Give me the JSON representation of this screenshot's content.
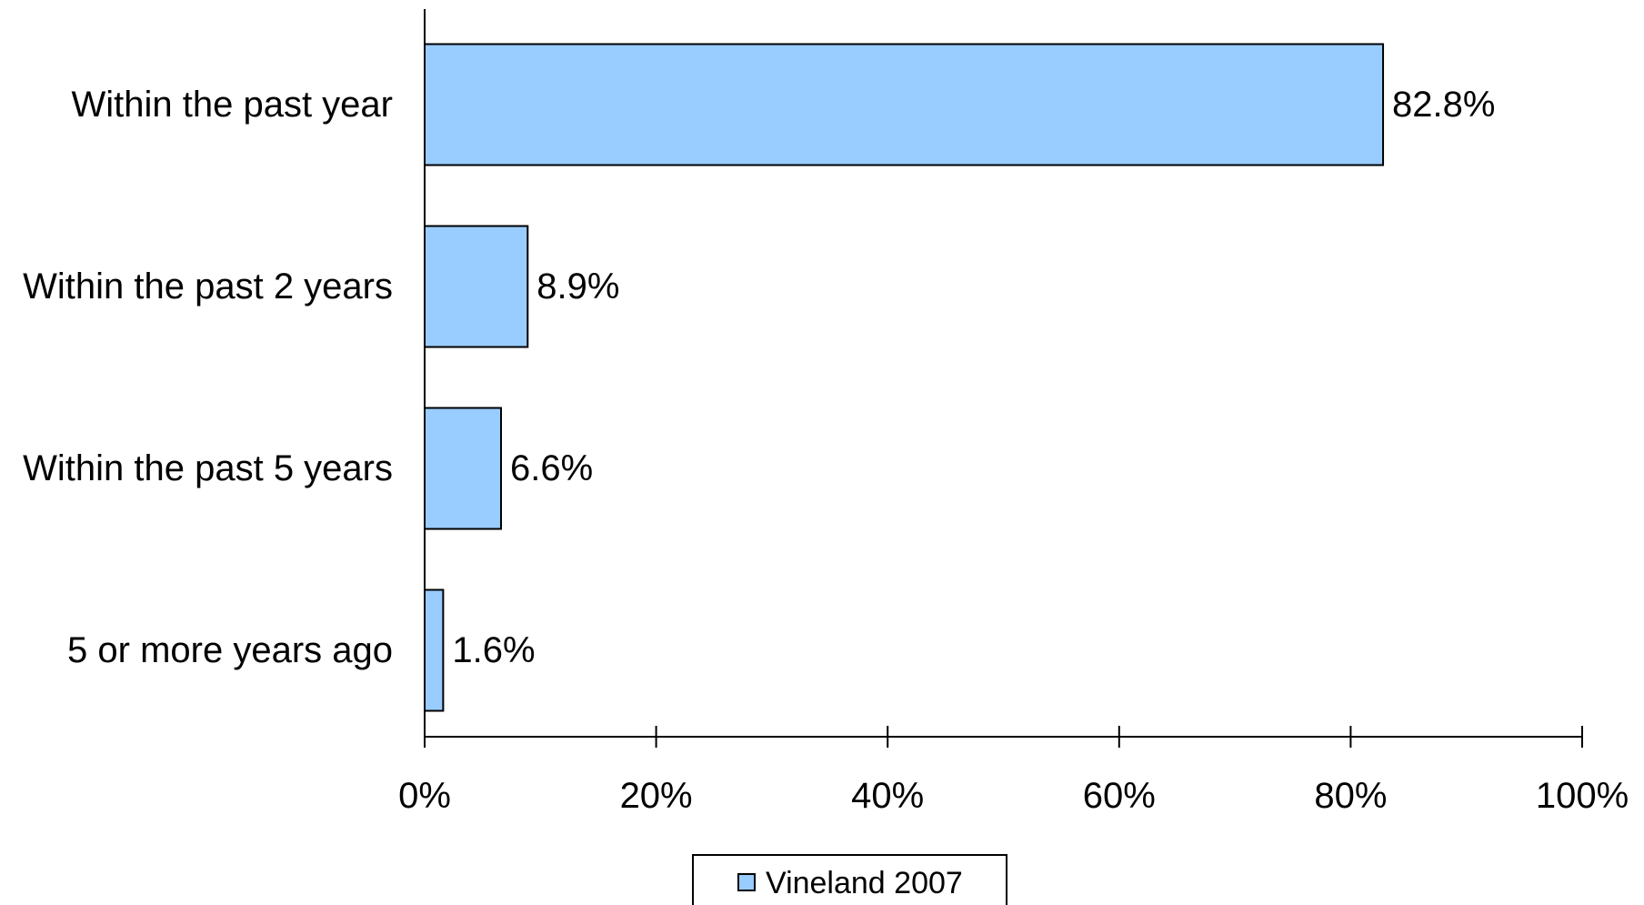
{
  "chart_data": {
    "type": "bar",
    "orientation": "horizontal",
    "categories": [
      "Within the past year",
      "Within the past 2 years",
      "Within the past 5 years",
      "5 or more years ago"
    ],
    "series": [
      {
        "name": "Vineland 2007",
        "values": [
          82.8,
          8.9,
          6.6,
          1.6
        ],
        "labels": [
          "82.8%",
          "8.9%",
          "6.6%",
          "1.6%"
        ]
      }
    ],
    "xlim": [
      0,
      100
    ],
    "xticks": [
      0,
      20,
      40,
      60,
      80,
      100
    ],
    "xtick_labels": [
      "0%",
      "20%",
      "40%",
      "60%",
      "80%",
      "100%"
    ],
    "title": "",
    "xlabel": "",
    "ylabel": "",
    "grid": false,
    "legend_position": "bottom",
    "colors": {
      "bar_fill": "#99ccff",
      "bar_stroke": "#000000",
      "axis": "#000000"
    }
  }
}
